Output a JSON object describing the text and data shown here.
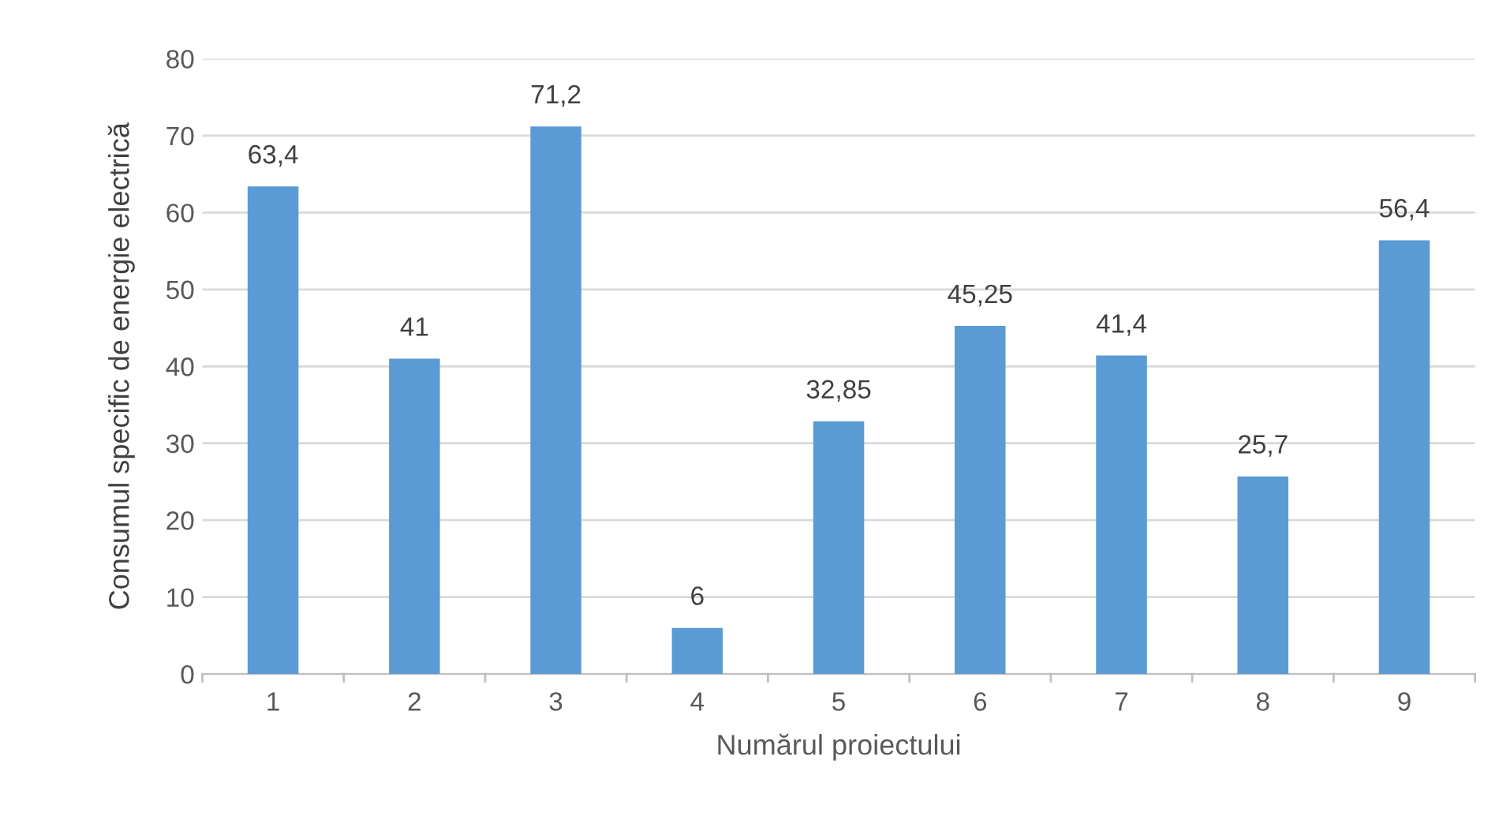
{
  "chart_data": {
    "type": "bar",
    "xlabel": "Numărul proiectului",
    "ylabel": "Consumul specific de energie electrică",
    "categories": [
      "1",
      "2",
      "3",
      "4",
      "5",
      "6",
      "7",
      "8",
      "9"
    ],
    "values": [
      63.4,
      41,
      71.2,
      6,
      32.85,
      45.25,
      41.4,
      25.7,
      56.4
    ],
    "value_labels": [
      "63,4",
      "41",
      "71,2",
      "6",
      "32,85",
      "45,25",
      "41,4",
      "25,7",
      "56,4"
    ],
    "color": "#5b9bd5",
    "ylim": [
      0,
      80
    ],
    "yticks": [
      0,
      10,
      20,
      30,
      40,
      50,
      60,
      70,
      80
    ],
    "grid": "y",
    "legend": false
  }
}
